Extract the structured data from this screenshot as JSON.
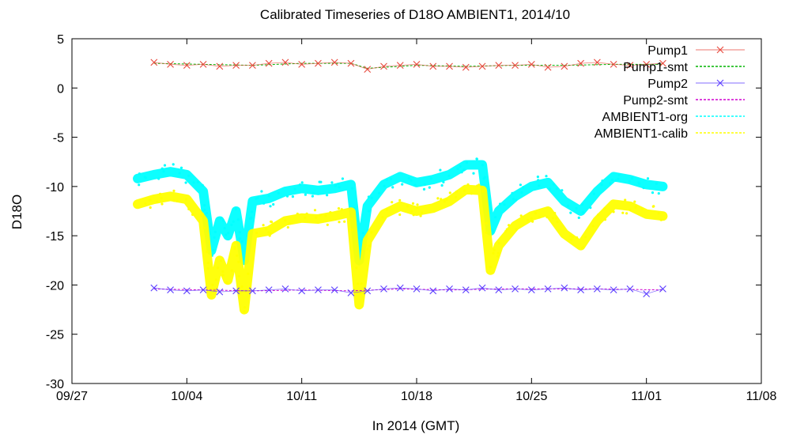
{
  "chart_data": {
    "type": "line",
    "title": "Calibrated Timeseries of D18O AMBIENT1, 2014/10",
    "xlabel": "In 2014 (GMT)",
    "ylabel": "D18O",
    "x_ticks": [
      "09/27",
      "10/04",
      "10/11",
      "10/18",
      "10/25",
      "11/01",
      "11/08"
    ],
    "y_ticks": [
      5,
      0,
      -5,
      -10,
      -15,
      -20,
      -25,
      -30
    ],
    "xlim": [
      "2014-09-27",
      "2014-11-08"
    ],
    "ylim": [
      -30,
      5
    ],
    "grid": false,
    "legend_position": "top-right",
    "series": [
      {
        "name": "Pump1",
        "style": "points-x",
        "color": "#e8483c",
        "x": [
          "2014-10-02",
          "2014-10-03",
          "2014-10-04",
          "2014-10-05",
          "2014-10-06",
          "2014-10-07",
          "2014-10-08",
          "2014-10-09",
          "2014-10-10",
          "2014-10-11",
          "2014-10-12",
          "2014-10-13",
          "2014-10-14",
          "2014-10-15",
          "2014-10-16",
          "2014-10-17",
          "2014-10-18",
          "2014-10-19",
          "2014-10-20",
          "2014-10-21",
          "2014-10-22",
          "2014-10-23",
          "2014-10-24",
          "2014-10-25",
          "2014-10-26",
          "2014-10-27",
          "2014-10-28",
          "2014-10-29",
          "2014-10-30",
          "2014-10-31",
          "2014-11-01",
          "2014-11-02"
        ],
        "values": [
          2.6,
          2.4,
          2.3,
          2.4,
          2.2,
          2.3,
          2.3,
          2.5,
          2.6,
          2.4,
          2.5,
          2.6,
          2.5,
          1.9,
          2.2,
          2.3,
          2.4,
          2.2,
          2.2,
          2.1,
          2.2,
          2.3,
          2.3,
          2.4,
          2.1,
          2.2,
          2.5,
          2.6,
          2.4,
          2.3,
          2.4,
          2.5
        ]
      },
      {
        "name": "Pump1-smt",
        "style": "dashed",
        "color": "#00b400",
        "x": [
          "2014-10-02",
          "2014-10-05",
          "2014-10-08",
          "2014-10-11",
          "2014-10-14",
          "2014-10-15",
          "2014-10-18",
          "2014-10-21",
          "2014-10-24",
          "2014-10-27",
          "2014-10-30",
          "2014-11-02"
        ],
        "values": [
          2.5,
          2.4,
          2.3,
          2.5,
          2.5,
          2.0,
          2.3,
          2.2,
          2.3,
          2.3,
          2.4,
          2.4
        ]
      },
      {
        "name": "Pump2",
        "style": "points-x",
        "color": "#5a3cff",
        "x": [
          "2014-10-02",
          "2014-10-03",
          "2014-10-04",
          "2014-10-05",
          "2014-10-06",
          "2014-10-07",
          "2014-10-08",
          "2014-10-09",
          "2014-10-10",
          "2014-10-11",
          "2014-10-12",
          "2014-10-13",
          "2014-10-14",
          "2014-10-15",
          "2014-10-16",
          "2014-10-17",
          "2014-10-18",
          "2014-10-19",
          "2014-10-20",
          "2014-10-21",
          "2014-10-22",
          "2014-10-23",
          "2014-10-24",
          "2014-10-25",
          "2014-10-26",
          "2014-10-27",
          "2014-10-28",
          "2014-10-29",
          "2014-10-30",
          "2014-10-31",
          "2014-11-01",
          "2014-11-02"
        ],
        "values": [
          -20.3,
          -20.5,
          -20.6,
          -20.5,
          -20.7,
          -20.6,
          -20.6,
          -20.5,
          -20.4,
          -20.6,
          -20.5,
          -20.5,
          -20.8,
          -20.6,
          -20.4,
          -20.3,
          -20.4,
          -20.6,
          -20.4,
          -20.5,
          -20.3,
          -20.5,
          -20.4,
          -20.5,
          -20.4,
          -20.3,
          -20.5,
          -20.4,
          -20.5,
          -20.4,
          -20.9,
          -20.4
        ]
      },
      {
        "name": "Pump2-smt",
        "style": "dashed",
        "color": "#d000d0",
        "x": [
          "2014-10-02",
          "2014-10-05",
          "2014-10-08",
          "2014-10-11",
          "2014-10-14",
          "2014-10-17",
          "2014-10-20",
          "2014-10-23",
          "2014-10-26",
          "2014-10-29",
          "2014-11-02"
        ],
        "values": [
          -20.4,
          -20.5,
          -20.6,
          -20.5,
          -20.6,
          -20.4,
          -20.5,
          -20.4,
          -20.4,
          -20.4,
          -20.5
        ]
      },
      {
        "name": "AMBIENT1-org",
        "style": "dense-band",
        "color": "#00ffff",
        "x": [
          "2014-10-01",
          "2014-10-02",
          "2014-10-03",
          "2014-10-04",
          "2014-10-05",
          "2014-10-05T12:00",
          "2014-10-06",
          "2014-10-06T12:00",
          "2014-10-07",
          "2014-10-07T12:00",
          "2014-10-08",
          "2014-10-09",
          "2014-10-10",
          "2014-10-11",
          "2014-10-12",
          "2014-10-13",
          "2014-10-14",
          "2014-10-14T12:00",
          "2014-10-15",
          "2014-10-16",
          "2014-10-17",
          "2014-10-18",
          "2014-10-19",
          "2014-10-20",
          "2014-10-21",
          "2014-10-22",
          "2014-10-22T12:00",
          "2014-10-23",
          "2014-10-24",
          "2014-10-25",
          "2014-10-26",
          "2014-10-27",
          "2014-10-28",
          "2014-10-29",
          "2014-10-30",
          "2014-10-31",
          "2014-11-01",
          "2014-11-02"
        ],
        "values": [
          -9.2,
          -8.8,
          -8.5,
          -8.8,
          -10.5,
          -16.5,
          -13.5,
          -15,
          -12.5,
          -17.5,
          -11.5,
          -11.2,
          -10.5,
          -10.2,
          -10.4,
          -10.2,
          -9.8,
          -17.5,
          -12,
          -9.8,
          -9,
          -9.6,
          -9.3,
          -8.8,
          -7.8,
          -7.8,
          -14.5,
          -12.5,
          -11,
          -10,
          -9.6,
          -11.5,
          -12.5,
          -10.5,
          -9,
          -9.3,
          -9.8,
          -10
        ]
      },
      {
        "name": "AMBIENT1-calib",
        "style": "dense-band",
        "color": "#ffff00",
        "x": [
          "2014-10-01",
          "2014-10-02",
          "2014-10-03",
          "2014-10-04",
          "2014-10-05",
          "2014-10-05T12:00",
          "2014-10-06",
          "2014-10-06T12:00",
          "2014-10-07",
          "2014-10-07T12:00",
          "2014-10-08",
          "2014-10-09",
          "2014-10-10",
          "2014-10-11",
          "2014-10-12",
          "2014-10-13",
          "2014-10-14",
          "2014-10-14T12:00",
          "2014-10-15",
          "2014-10-16",
          "2014-10-17",
          "2014-10-18",
          "2014-10-19",
          "2014-10-20",
          "2014-10-21",
          "2014-10-22",
          "2014-10-22T12:00",
          "2014-10-23",
          "2014-10-24",
          "2014-10-25",
          "2014-10-26",
          "2014-10-27",
          "2014-10-28",
          "2014-10-29",
          "2014-10-30",
          "2014-10-31",
          "2014-11-01",
          "2014-11-02"
        ],
        "values": [
          -11.8,
          -11.3,
          -11,
          -11.3,
          -13.5,
          -21,
          -17.5,
          -19.5,
          -16,
          -22.5,
          -14.8,
          -14.5,
          -13.5,
          -13.2,
          -13.3,
          -13,
          -12.6,
          -22,
          -15.5,
          -12.8,
          -12,
          -12.5,
          -12.2,
          -11.5,
          -10.3,
          -10.4,
          -18.5,
          -16,
          -14,
          -13,
          -12.5,
          -14.8,
          -16,
          -13.5,
          -11.8,
          -12,
          -12.8,
          -13
        ]
      }
    ]
  }
}
